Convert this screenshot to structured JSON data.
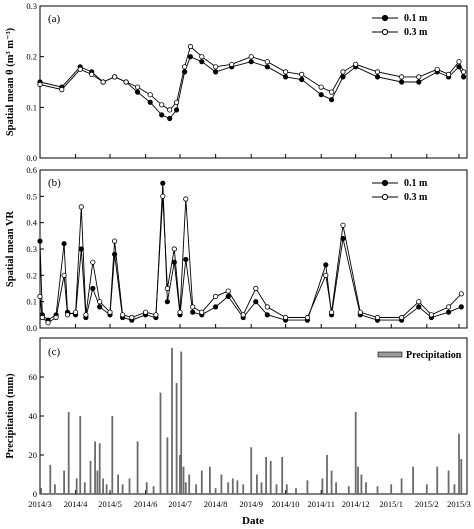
{
  "chart_data": [
    {
      "type": "line",
      "panel_label": "(a)",
      "ylabel": "Spatial mean θ (m³ m⁻³)",
      "ylim": [
        0,
        0.3
      ],
      "yticks": [
        "0.0",
        "0.1",
        "0.2",
        "0.3"
      ],
      "legend_position": "top-right",
      "x_dates": [
        "2014-03-01",
        "2014-03-20",
        "2014-04-05",
        "2014-04-15",
        "2014-04-25",
        "2014-05-05",
        "2014-05-15",
        "2014-05-25",
        "2014-06-05",
        "2014-06-15",
        "2014-06-22",
        "2014-06-28",
        "2014-07-05",
        "2014-07-10",
        "2014-07-20",
        "2014-08-01",
        "2014-08-15",
        "2014-09-01",
        "2014-09-15",
        "2014-10-01",
        "2014-10-15",
        "2014-11-01",
        "2014-11-10",
        "2014-11-20",
        "2014-12-01",
        "2014-12-20",
        "2015-01-10",
        "2015-01-25",
        "2015-02-10",
        "2015-02-20",
        "2015-03-01",
        "2015-03-05"
      ],
      "series": [
        {
          "name": "0.1 m",
          "marker": "filled-circle",
          "values": [
            0.15,
            0.14,
            0.18,
            0.17,
            0.15,
            0.16,
            0.15,
            0.13,
            0.11,
            0.085,
            0.078,
            0.095,
            0.17,
            0.2,
            0.19,
            0.17,
            0.18,
            0.19,
            0.18,
            0.16,
            0.155,
            0.125,
            0.115,
            0.16,
            0.18,
            0.16,
            0.15,
            0.15,
            0.17,
            0.16,
            0.18,
            0.16
          ]
        },
        {
          "name": "0.3 m",
          "marker": "open-circle",
          "values": [
            0.145,
            0.135,
            0.175,
            0.165,
            0.15,
            0.16,
            0.15,
            0.14,
            0.125,
            0.105,
            0.095,
            0.11,
            0.18,
            0.22,
            0.2,
            0.18,
            0.185,
            0.2,
            0.19,
            0.17,
            0.165,
            0.14,
            0.13,
            0.17,
            0.185,
            0.17,
            0.16,
            0.16,
            0.175,
            0.165,
            0.19,
            0.17
          ]
        }
      ]
    },
    {
      "type": "line",
      "panel_label": "(b)",
      "ylabel": "Spatial mean VR",
      "ylim": [
        0,
        0.6
      ],
      "yticks": [
        "0.0",
        "0.1",
        "0.2",
        "0.3",
        "0.4",
        "0.5",
        "0.6"
      ],
      "legend_position": "top-right",
      "x_dates": [
        "2014-03-01",
        "2014-03-03",
        "2014-03-08",
        "2014-03-15",
        "2014-03-22",
        "2014-03-25",
        "2014-04-01",
        "2014-04-06",
        "2014-04-10",
        "2014-04-16",
        "2014-04-22",
        "2014-05-01",
        "2014-05-05",
        "2014-05-12",
        "2014-05-20",
        "2014-06-01",
        "2014-06-10",
        "2014-06-16",
        "2014-06-20",
        "2014-06-26",
        "2014-07-01",
        "2014-07-06",
        "2014-07-12",
        "2014-07-20",
        "2014-08-01",
        "2014-08-12",
        "2014-08-25",
        "2014-09-05",
        "2014-09-15",
        "2014-10-01",
        "2014-10-20",
        "2014-11-05",
        "2014-11-10",
        "2014-11-20",
        "2014-12-05",
        "2014-12-20",
        "2015-01-10",
        "2015-01-25",
        "2015-02-05",
        "2015-02-20",
        "2015-03-03"
      ],
      "series": [
        {
          "name": "0.1 m",
          "marker": "filled-circle",
          "values": [
            0.33,
            0.05,
            0.03,
            0.05,
            0.32,
            0.06,
            0.05,
            0.3,
            0.04,
            0.15,
            0.08,
            0.05,
            0.28,
            0.04,
            0.03,
            0.05,
            0.04,
            0.55,
            0.1,
            0.25,
            0.05,
            0.26,
            0.06,
            0.05,
            0.08,
            0.12,
            0.04,
            0.1,
            0.05,
            0.03,
            0.03,
            0.24,
            0.05,
            0.34,
            0.05,
            0.03,
            0.03,
            0.08,
            0.04,
            0.06,
            0.08
          ]
        },
        {
          "name": "0.3 m",
          "marker": "open-circle",
          "values": [
            0.12,
            0.04,
            0.02,
            0.04,
            0.2,
            0.05,
            0.06,
            0.46,
            0.05,
            0.25,
            0.1,
            0.06,
            0.33,
            0.05,
            0.04,
            0.06,
            0.05,
            0.5,
            0.15,
            0.3,
            0.06,
            0.49,
            0.08,
            0.06,
            0.12,
            0.14,
            0.05,
            0.15,
            0.08,
            0.04,
            0.04,
            0.2,
            0.06,
            0.39,
            0.06,
            0.04,
            0.04,
            0.1,
            0.05,
            0.08,
            0.13
          ]
        }
      ]
    },
    {
      "type": "bar",
      "panel_label": "(c)",
      "ylabel": "Precipitation (mm)",
      "xlabel": "Date",
      "ylim": [
        0,
        80
      ],
      "yticks": [
        "0",
        "20",
        "40",
        "60"
      ],
      "legend_position": "top-right",
      "series": [
        {
          "name": "Precipitation"
        }
      ],
      "x_dates": [
        "2014-03-02",
        "2014-03-10",
        "2014-03-14",
        "2014-03-22",
        "2014-03-26",
        "2014-04-02",
        "2014-04-05",
        "2014-04-09",
        "2014-04-14",
        "2014-04-18",
        "2014-04-20",
        "2014-04-22",
        "2014-04-25",
        "2014-04-28",
        "2014-05-03",
        "2014-05-08",
        "2014-05-12",
        "2014-05-18",
        "2014-05-25",
        "2014-06-02",
        "2014-06-08",
        "2014-06-14",
        "2014-06-20",
        "2014-06-24",
        "2014-06-28",
        "2014-07-01",
        "2014-07-02",
        "2014-07-04",
        "2014-07-06",
        "2014-07-09",
        "2014-07-15",
        "2014-07-20",
        "2014-07-27",
        "2014-08-01",
        "2014-08-06",
        "2014-08-12",
        "2014-08-16",
        "2014-08-20",
        "2014-08-25",
        "2014-09-01",
        "2014-09-06",
        "2014-09-10",
        "2014-09-14",
        "2014-09-18",
        "2014-09-23",
        "2014-09-28",
        "2014-10-02",
        "2014-10-10",
        "2014-10-20",
        "2014-11-02",
        "2014-11-06",
        "2014-11-10",
        "2014-11-14",
        "2014-11-25",
        "2014-12-01",
        "2014-12-03",
        "2014-12-06",
        "2014-12-10",
        "2014-12-20",
        "2015-01-01",
        "2015-01-10",
        "2015-01-20",
        "2015-02-01",
        "2015-02-10",
        "2015-02-20",
        "2015-02-25",
        "2015-03-01",
        "2015-03-03"
      ],
      "values": [
        3,
        15,
        5,
        12,
        42,
        8,
        40,
        6,
        17,
        27,
        12,
        26,
        8,
        5,
        40,
        10,
        5,
        8,
        27,
        6,
        4,
        52,
        29,
        75,
        57,
        20,
        73,
        14,
        6,
        10,
        5,
        12,
        14,
        3,
        10,
        6,
        8,
        7,
        5,
        24,
        10,
        6,
        19,
        17,
        5,
        19,
        5,
        3,
        7,
        8,
        20,
        12,
        6,
        4,
        42,
        14,
        10,
        6,
        4,
        5,
        8,
        14,
        5,
        14,
        12,
        5,
        31,
        18
      ]
    }
  ],
  "x_axis": {
    "label": "Date",
    "ticks": [
      "2014/3",
      "2014/4",
      "2014/5",
      "2014/6",
      "2014/7",
      "2014/8",
      "2014/9",
      "2014/10",
      "2014/11",
      "2014/12",
      "2015/1",
      "2015/2",
      "2015/3"
    ],
    "tick_dates": [
      "2014-03-01",
      "2014-04-01",
      "2014-05-01",
      "2014-06-01",
      "2014-07-01",
      "2014-08-01",
      "2014-09-01",
      "2014-10-01",
      "2014-11-01",
      "2014-12-01",
      "2015-01-01",
      "2015-02-01",
      "2015-03-01"
    ],
    "range": [
      "2014-03-01",
      "2015-03-08"
    ]
  }
}
